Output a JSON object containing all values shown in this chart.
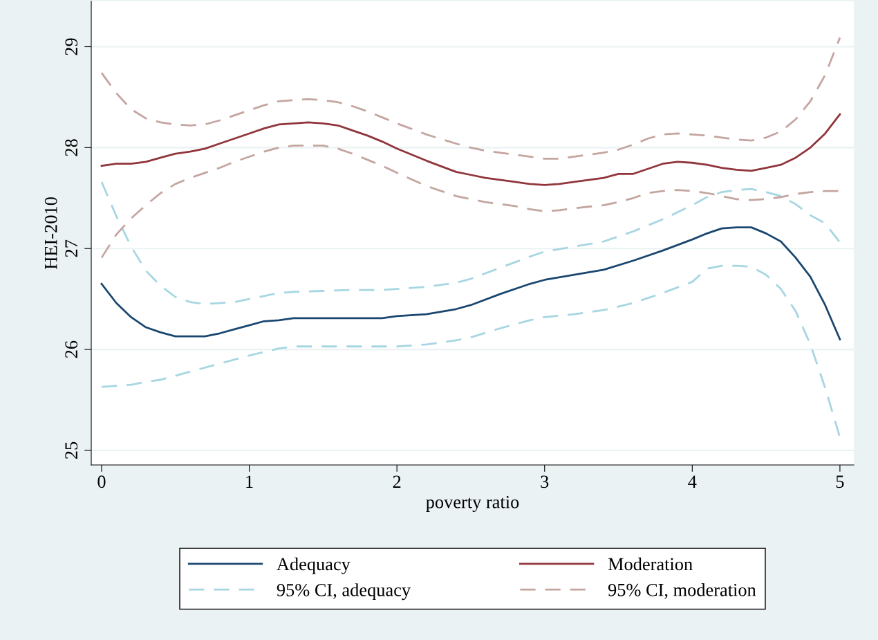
{
  "chart_data": {
    "type": "line",
    "xlabel": "poverty ratio",
    "ylabel": "HEI-2010",
    "xlim": [
      -0.07,
      5.094
    ],
    "ylim": [
      24.856,
      29.45
    ],
    "xticks": [
      0,
      1,
      2,
      3,
      4,
      5
    ],
    "yticks": [
      25,
      26,
      27,
      28,
      29
    ],
    "grid": "y",
    "legend": "bottom",
    "marker": "none",
    "series": [
      {
        "name": "Adequacy",
        "color": "#1a476f",
        "line_style": "solid",
        "x": [
          0,
          0.1,
          0.2,
          0.3,
          0.4,
          0.5,
          0.6,
          0.7,
          0.8,
          0.9,
          1.0,
          1.1,
          1.2,
          1.3,
          1.5,
          1.7,
          1.9,
          2.0,
          2.2,
          2.4,
          2.5,
          2.7,
          2.9,
          3.0,
          3.2,
          3.4,
          3.6,
          3.8,
          4.0,
          4.1,
          4.2,
          4.3,
          4.4,
          4.5,
          4.6,
          4.7,
          4.8,
          4.9,
          5.0
        ],
        "values": [
          26.65,
          26.46,
          26.32,
          26.22,
          26.17,
          26.13,
          26.13,
          26.13,
          26.16,
          26.2,
          26.24,
          26.28,
          26.29,
          26.31,
          26.31,
          26.31,
          26.31,
          26.33,
          26.35,
          26.4,
          26.44,
          26.55,
          26.65,
          26.69,
          26.74,
          26.79,
          26.88,
          26.98,
          27.09,
          27.15,
          27.2,
          27.21,
          27.21,
          27.15,
          27.07,
          26.91,
          26.72,
          26.44,
          26.1
        ]
      },
      {
        "name": "Moderation",
        "color": "#90353b",
        "line_style": "solid",
        "x": [
          0,
          0.1,
          0.2,
          0.3,
          0.4,
          0.5,
          0.6,
          0.7,
          0.8,
          0.9,
          1.0,
          1.1,
          1.2,
          1.3,
          1.4,
          1.5,
          1.6,
          1.7,
          1.8,
          1.9,
          2.0,
          2.2,
          2.4,
          2.5,
          2.6,
          2.8,
          2.9,
          3.0,
          3.1,
          3.2,
          3.4,
          3.5,
          3.6,
          3.7,
          3.8,
          3.9,
          4.0,
          4.1,
          4.2,
          4.3,
          4.4,
          4.5,
          4.6,
          4.7,
          4.8,
          4.9,
          5.0
        ],
        "values": [
          27.82,
          27.84,
          27.84,
          27.86,
          27.9,
          27.94,
          27.96,
          27.99,
          28.04,
          28.09,
          28.14,
          28.19,
          28.23,
          28.24,
          28.25,
          28.24,
          28.22,
          28.17,
          28.12,
          28.06,
          27.99,
          27.87,
          27.76,
          27.73,
          27.7,
          27.66,
          27.64,
          27.63,
          27.64,
          27.66,
          27.7,
          27.74,
          27.74,
          27.79,
          27.84,
          27.86,
          27.85,
          27.83,
          27.8,
          27.78,
          27.77,
          27.8,
          27.83,
          27.9,
          28.0,
          28.14,
          28.33
        ]
      },
      {
        "name": "95% CI, adequacy",
        "color": "#a6d6e2",
        "line_style": "dashed",
        "x": [
          0,
          0.1,
          0.2,
          0.3,
          0.4,
          0.5,
          0.6,
          0.7,
          0.8,
          0.9,
          1.0,
          1.1,
          1.2,
          1.3,
          1.5,
          1.7,
          1.9,
          2.0,
          2.2,
          2.4,
          2.5,
          2.7,
          2.9,
          3.0,
          3.2,
          3.4,
          3.6,
          3.8,
          4.0,
          4.1,
          4.2,
          4.3,
          4.4,
          4.5,
          4.6,
          4.7,
          4.8,
          4.9,
          5.0
        ],
        "values": [
          27.66,
          27.32,
          27.02,
          26.78,
          26.63,
          26.52,
          26.47,
          26.45,
          26.46,
          26.47,
          26.5,
          26.53,
          26.56,
          26.57,
          26.58,
          26.59,
          26.59,
          26.6,
          26.62,
          26.66,
          26.7,
          26.81,
          26.92,
          26.97,
          27.02,
          27.07,
          27.17,
          27.29,
          27.43,
          27.51,
          27.56,
          27.58,
          27.59,
          27.56,
          27.52,
          27.44,
          27.33,
          27.25,
          27.06
        ]
      },
      {
        "color": "#a6d6e2",
        "line_style": "dashed",
        "x": [
          0,
          0.2,
          0.3,
          0.4,
          0.5,
          0.6,
          0.8,
          1.0,
          1.2,
          1.3,
          1.5,
          1.7,
          1.9,
          2.0,
          2.2,
          2.4,
          2.5,
          2.7,
          2.9,
          3.0,
          3.2,
          3.4,
          3.6,
          3.8,
          4.0,
          4.1,
          4.2,
          4.3,
          4.4,
          4.5,
          4.6,
          4.7,
          4.8,
          4.9,
          5.0
        ],
        "values": [
          25.63,
          25.65,
          25.68,
          25.7,
          25.74,
          25.78,
          25.86,
          25.94,
          26.01,
          26.03,
          26.03,
          26.03,
          26.03,
          26.03,
          26.05,
          26.09,
          26.12,
          26.21,
          26.29,
          26.32,
          26.35,
          26.39,
          26.46,
          26.56,
          26.67,
          26.8,
          26.83,
          26.83,
          26.82,
          26.74,
          26.6,
          26.38,
          26.05,
          25.62,
          25.13
        ]
      },
      {
        "name": "95% CI, moderation",
        "color": "#c4a5a0",
        "line_style": "dashed",
        "x": [
          0,
          0.1,
          0.2,
          0.3,
          0.4,
          0.5,
          0.6,
          0.7,
          0.8,
          0.9,
          1.0,
          1.1,
          1.2,
          1.3,
          1.4,
          1.5,
          1.6,
          1.7,
          1.8,
          1.9,
          2.0,
          2.2,
          2.4,
          2.5,
          2.6,
          2.8,
          2.9,
          3.0,
          3.1,
          3.2,
          3.4,
          3.5,
          3.6,
          3.7,
          3.8,
          3.9,
          4.0,
          4.1,
          4.2,
          4.3,
          4.4,
          4.5,
          4.6,
          4.7,
          4.8,
          4.9,
          5.0
        ],
        "values": [
          28.74,
          28.54,
          28.38,
          28.29,
          28.25,
          28.23,
          28.22,
          28.23,
          28.27,
          28.32,
          28.37,
          28.42,
          28.46,
          28.47,
          28.48,
          28.47,
          28.45,
          28.41,
          28.36,
          28.3,
          28.24,
          28.13,
          28.04,
          28.0,
          27.97,
          27.93,
          27.91,
          27.89,
          27.89,
          27.91,
          27.95,
          27.98,
          28.03,
          28.09,
          28.13,
          28.14,
          28.13,
          28.12,
          28.1,
          28.08,
          28.07,
          28.1,
          28.16,
          28.28,
          28.46,
          28.72,
          29.09
        ]
      },
      {
        "color": "#c4a5a0",
        "line_style": "dashed",
        "x": [
          0,
          0.1,
          0.2,
          0.3,
          0.4,
          0.5,
          0.6,
          0.7,
          0.8,
          0.9,
          1.0,
          1.1,
          1.2,
          1.3,
          1.4,
          1.5,
          1.6,
          1.7,
          1.8,
          1.9,
          2.0,
          2.2,
          2.4,
          2.5,
          2.6,
          2.8,
          2.9,
          3.0,
          3.1,
          3.2,
          3.4,
          3.5,
          3.6,
          3.7,
          3.8,
          3.9,
          4.0,
          4.1,
          4.2,
          4.3,
          4.4,
          4.5,
          4.6,
          4.7,
          4.8,
          4.9,
          5.0
        ],
        "values": [
          26.91,
          27.14,
          27.3,
          27.43,
          27.55,
          27.64,
          27.7,
          27.75,
          27.8,
          27.86,
          27.91,
          27.96,
          28.0,
          28.02,
          28.02,
          28.02,
          27.99,
          27.94,
          27.88,
          27.82,
          27.75,
          27.62,
          27.52,
          27.49,
          27.46,
          27.42,
          27.39,
          27.37,
          27.38,
          27.4,
          27.43,
          27.46,
          27.5,
          27.55,
          27.57,
          27.58,
          27.57,
          27.55,
          27.52,
          27.49,
          27.48,
          27.49,
          27.51,
          27.54,
          27.56,
          27.57,
          27.57
        ]
      }
    ]
  }
}
